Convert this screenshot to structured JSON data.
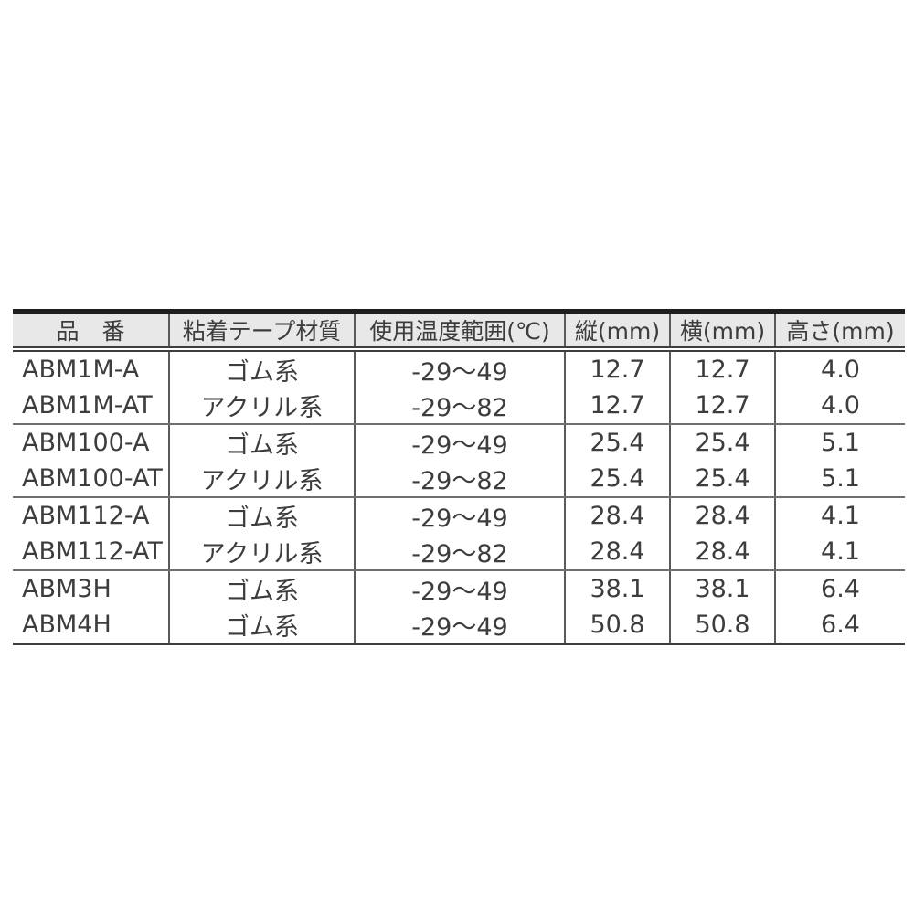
{
  "colors": {
    "page_bg": "#ffffff",
    "header_bg": "#e8e8e8",
    "text": "#3d3d3d",
    "top_rule": "#1e1e1e",
    "grid_line": "#5a5a5a"
  },
  "table": {
    "headers": [
      "品　番",
      "粘着テープ材質",
      "使用温度範囲(℃)",
      "縦(mm)",
      "横(mm)",
      "高さ(mm)"
    ],
    "rows": [
      [
        "ABM1M-A",
        "ゴム系",
        "-29～49",
        "12.7",
        "12.7",
        "4.0"
      ],
      [
        "ABM1M-AT",
        "アクリル系",
        "-29～82",
        "12.7",
        "12.7",
        "4.0"
      ],
      [
        "ABM100-A",
        "ゴム系",
        "-29～49",
        "25.4",
        "25.4",
        "5.1"
      ],
      [
        "ABM100-AT",
        "アクリル系",
        "-29～82",
        "25.4",
        "25.4",
        "5.1"
      ],
      [
        "ABM112-A",
        "ゴム系",
        "-29～49",
        "28.4",
        "28.4",
        "4.1"
      ],
      [
        "ABM112-AT",
        "アクリル系",
        "-29～82",
        "28.4",
        "28.4",
        "4.1"
      ],
      [
        "ABM3H",
        "ゴム系",
        "-29～49",
        "38.1",
        "38.1",
        "6.4"
      ],
      [
        "ABM4H",
        "ゴム系",
        "-29～49",
        "50.8",
        "50.8",
        "6.4"
      ]
    ]
  }
}
